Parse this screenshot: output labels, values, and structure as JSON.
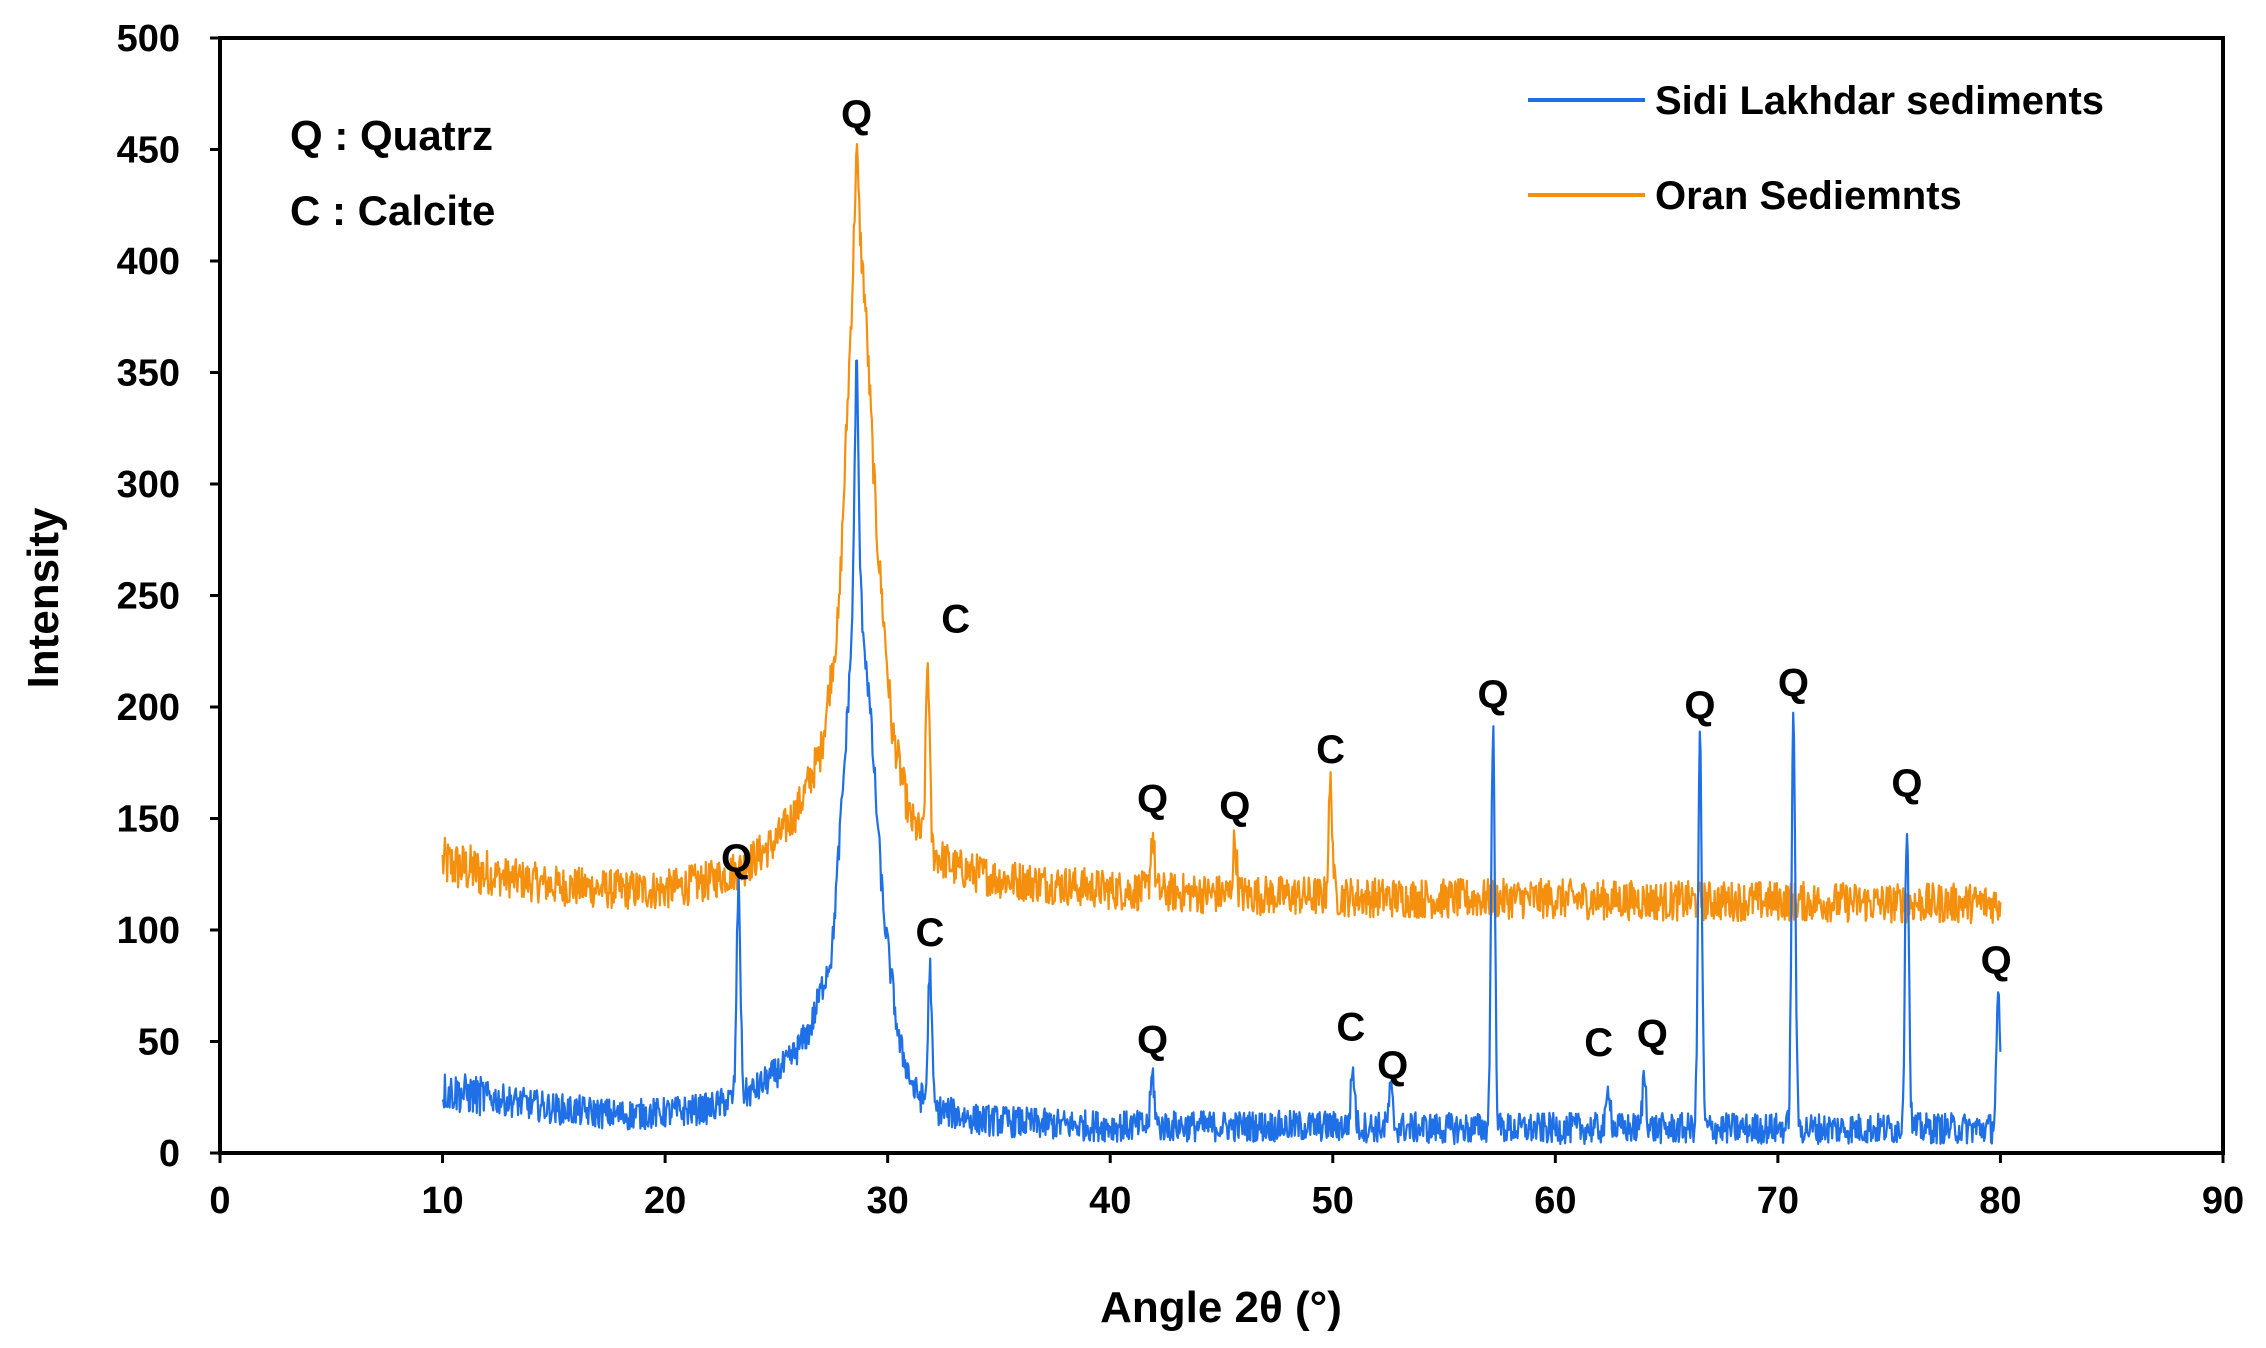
{
  "chart_data": {
    "type": "line",
    "xlabel": "Angle 2θ (°)",
    "ylabel": "Intensity",
    "xlim": [
      0,
      90
    ],
    "ylim": [
      0,
      500
    ],
    "xticks": [
      "0",
      "10",
      "20",
      "30",
      "40",
      "50",
      "60",
      "70",
      "80",
      "90"
    ],
    "yticks": [
      "0",
      "50",
      "100",
      "150",
      "200",
      "250",
      "300",
      "350",
      "400",
      "450",
      "500"
    ],
    "grid": false,
    "legend_position": "top-right",
    "phase_key": [
      "Q : Quatrz",
      "C : Calcite"
    ],
    "series": [
      {
        "name": "Sidi Lakhdar sediments",
        "color": "#1f6fe6",
        "x_range": [
          10,
          80
        ],
        "baseline": [
          [
            10,
            28
          ],
          [
            12,
            25
          ],
          [
            15,
            20
          ],
          [
            18,
            17
          ],
          [
            20,
            18
          ],
          [
            22,
            20
          ],
          [
            24,
            28
          ],
          [
            25.5,
            40
          ],
          [
            26.5,
            55
          ],
          [
            27.5,
            90
          ],
          [
            28.1,
            180
          ],
          [
            28.6,
            270
          ],
          [
            29.2,
            200
          ],
          [
            29.8,
            110
          ],
          [
            30.5,
            50
          ],
          [
            31.2,
            28
          ],
          [
            32,
            20
          ],
          [
            34,
            15
          ],
          [
            37,
            13
          ],
          [
            40,
            12
          ],
          [
            45,
            12
          ],
          [
            50,
            12
          ],
          [
            55,
            11
          ],
          [
            60,
            11
          ],
          [
            65,
            11
          ],
          [
            70,
            11
          ],
          [
            75,
            11
          ],
          [
            80,
            11
          ]
        ],
        "peaks": [
          {
            "x": 23.3,
            "y": 120,
            "label": "Q"
          },
          {
            "x": 28.6,
            "y": 355,
            "label": "Q"
          },
          {
            "x": 31.9,
            "y": 83,
            "label": "C"
          },
          {
            "x": 41.9,
            "y": 35,
            "label": "Q"
          },
          {
            "x": 50.9,
            "y": 38,
            "label": "C"
          },
          {
            "x": 52.6,
            "y": 28,
            "label": "Q"
          },
          {
            "x": 57.2,
            "y": 190,
            "label": "Q"
          },
          {
            "x": 62.4,
            "y": 30,
            "label": "C"
          },
          {
            "x": 64.0,
            "y": 35,
            "label": "Q"
          },
          {
            "x": 66.5,
            "y": 185,
            "label": "Q"
          },
          {
            "x": 70.7,
            "y": 195,
            "label": "Q"
          },
          {
            "x": 75.8,
            "y": 150,
            "label": "Q"
          },
          {
            "x": 79.9,
            "y": 68,
            "label": "Q"
          }
        ]
      },
      {
        "name": "Oran Sediemnts",
        "color": "#f5900f",
        "x_range": [
          10,
          80
        ],
        "baseline": [
          [
            10,
            130
          ],
          [
            12,
            125
          ],
          [
            15,
            120
          ],
          [
            18,
            118
          ],
          [
            20,
            118
          ],
          [
            22,
            122
          ],
          [
            23.5,
            128
          ],
          [
            25,
            140
          ],
          [
            26,
            155
          ],
          [
            27,
            180
          ],
          [
            27.8,
            240
          ],
          [
            28.3,
            360
          ],
          [
            28.6,
            430
          ],
          [
            29.0,
            380
          ],
          [
            29.5,
            280
          ],
          [
            30.2,
            190
          ],
          [
            31,
            150
          ],
          [
            32,
            135
          ],
          [
            33,
            128
          ],
          [
            35,
            123
          ],
          [
            38,
            120
          ],
          [
            40,
            118
          ],
          [
            45,
            116
          ],
          [
            50,
            115
          ],
          [
            55,
            114
          ],
          [
            60,
            114
          ],
          [
            65,
            113
          ],
          [
            70,
            113
          ],
          [
            75,
            112
          ],
          [
            80,
            112
          ]
        ],
        "peaks": [
          {
            "x": 28.6,
            "y": 450,
            "label": "Q"
          },
          {
            "x": 31.8,
            "y": 220,
            "label": "C"
          },
          {
            "x": 41.9,
            "y": 143,
            "label": "Q"
          },
          {
            "x": 45.6,
            "y": 140,
            "label": "Q"
          },
          {
            "x": 49.9,
            "y": 165,
            "label": "C"
          }
        ]
      }
    ]
  }
}
